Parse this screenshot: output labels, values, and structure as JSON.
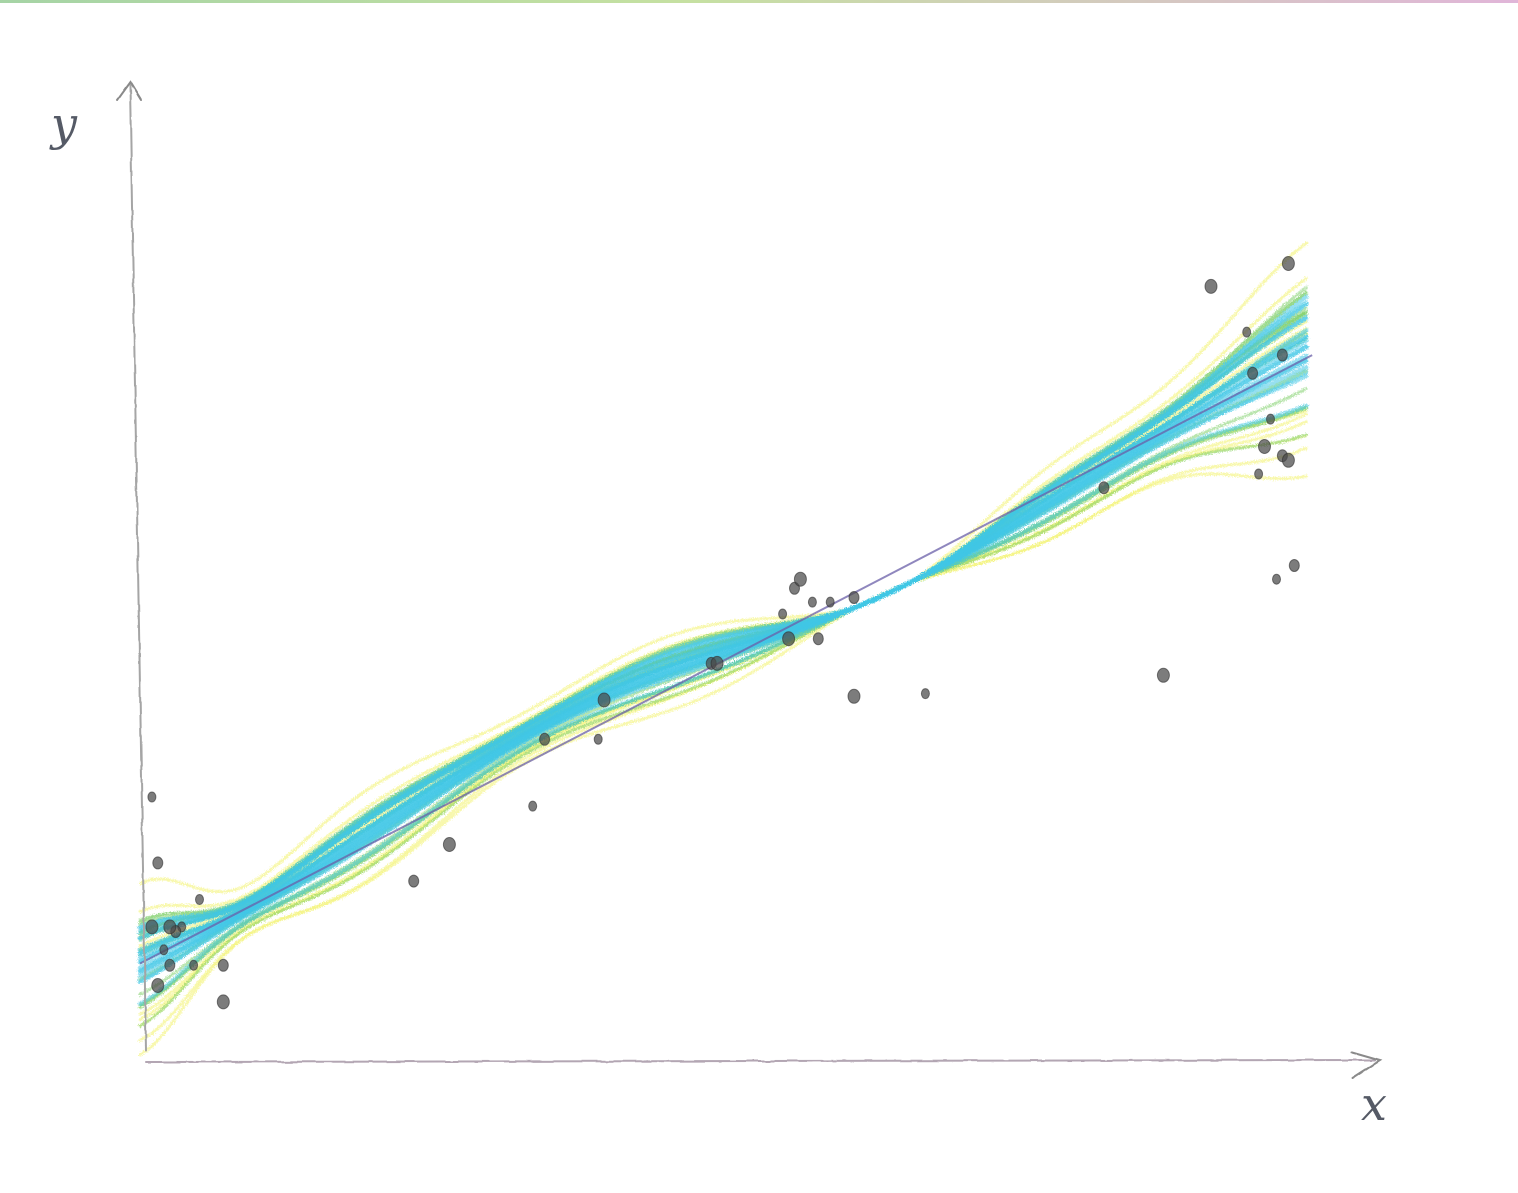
{
  "chart_data": {
    "type": "scatter",
    "title": "",
    "xlabel": "x",
    "ylabel": "y",
    "xlim": [
      0,
      10
    ],
    "ylim": [
      0,
      10
    ],
    "grid": false,
    "legend": "none",
    "style": "hand-drawn colored pencil",
    "colors": {
      "points": "#4a4a4a",
      "mean_line": "#6a5fa8",
      "band_outer": "#f3f36a",
      "band_mid": "#7fd06a",
      "band_inner": "#3fc6e6",
      "axes": "#9a9a9a"
    },
    "series": [
      {
        "type": "scatter",
        "x": [
          0.1,
          0.15,
          0.1,
          0.35,
          0.3,
          0.25,
          0.2,
          0.25,
          0.15,
          0.5,
          0.7,
          0.7,
          0.45,
          2.3,
          2.6,
          3.3,
          3.4,
          3.9,
          3.85,
          4.8,
          4.85,
          5.4,
          5.5,
          5.45,
          5.65,
          5.7,
          5.55,
          5.8,
          6.0,
          6.0,
          6.6,
          8.1,
          8.6,
          9.4,
          9.35,
          9.45,
          9.5,
          9.6,
          9.65,
          9.55,
          9.7,
          9.65,
          9.3,
          9.6,
          9.0
        ],
        "y": [
          2.82,
          2.1,
          1.4,
          1.4,
          1.35,
          1.4,
          1.15,
          0.98,
          0.76,
          1.7,
          0.98,
          0.58,
          0.98,
          1.9,
          2.3,
          2.72,
          3.45,
          3.88,
          3.45,
          4.28,
          4.28,
          4.82,
          5.1,
          4.55,
          4.95,
          4.55,
          5.2,
          4.95,
          5.0,
          3.92,
          3.95,
          6.2,
          4.15,
          6.35,
          7.45,
          6.65,
          6.95,
          6.55,
          6.5,
          5.2,
          5.35,
          8.65,
          7.9,
          7.65,
          8.4
        ]
      },
      {
        "type": "line",
        "x": [
          0,
          10
        ],
        "y": [
          1.0,
          7.75
        ]
      }
    ]
  }
}
